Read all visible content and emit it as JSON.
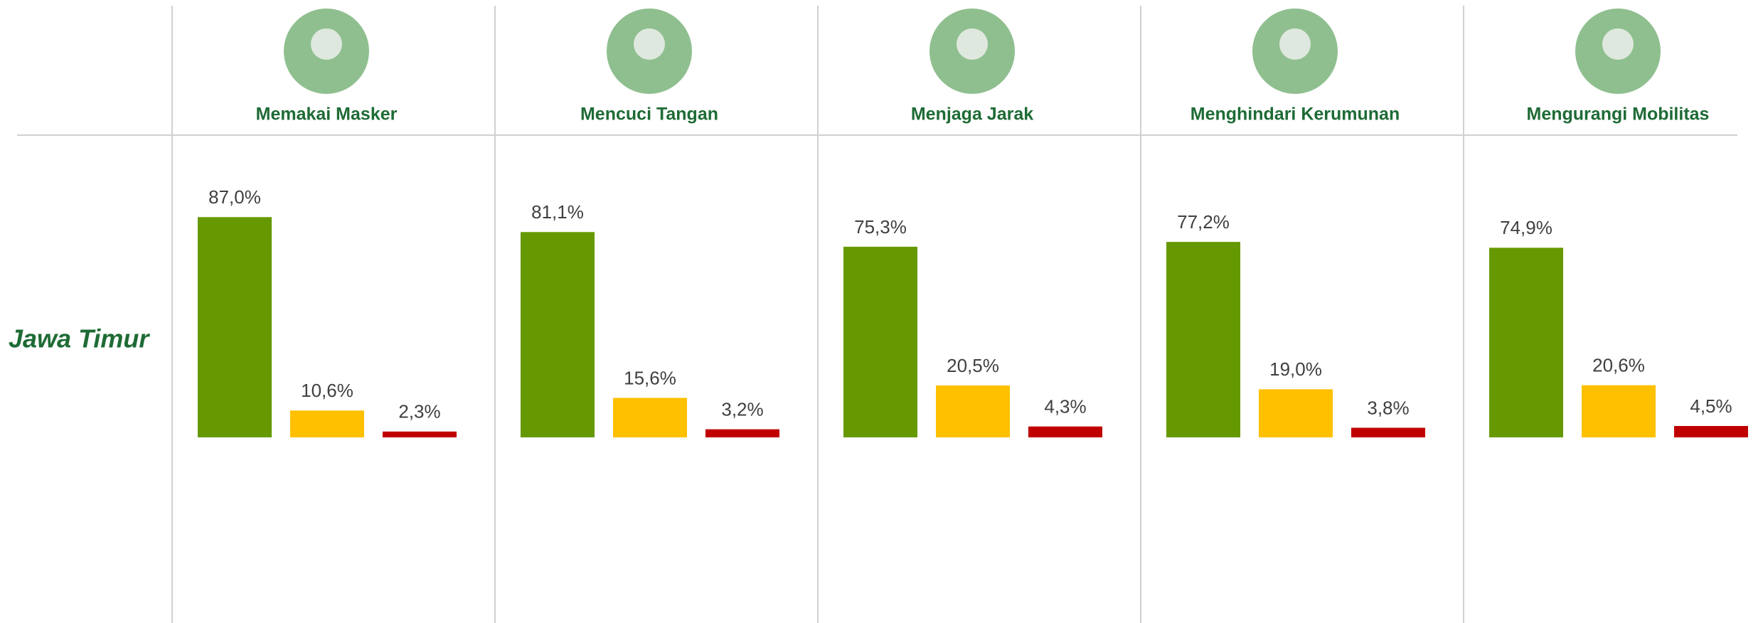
{
  "row_label": "Jawa Timur",
  "chart_data": [
    {
      "type": "bar",
      "title": "Memakai Masker",
      "values": [
        87.0,
        10.6,
        2.3
      ],
      "value_labels": [
        "87,0%",
        "10,6%",
        "2,3%"
      ],
      "colors": [
        "#669900",
        "#ffc000",
        "#c00000"
      ]
    },
    {
      "type": "bar",
      "title": "Mencuci Tangan",
      "values": [
        81.1,
        15.6,
        3.2
      ],
      "value_labels": [
        "81,1%",
        "15,6%",
        "3,2%"
      ],
      "colors": [
        "#669900",
        "#ffc000",
        "#c00000"
      ]
    },
    {
      "type": "bar",
      "title": "Menjaga Jarak",
      "values": [
        75.3,
        20.5,
        4.3
      ],
      "value_labels": [
        "75,3%",
        "20,5%",
        "4,3%"
      ],
      "colors": [
        "#669900",
        "#ffc000",
        "#c00000"
      ]
    },
    {
      "type": "bar",
      "title": "Menghindari Kerumunan",
      "values": [
        77.2,
        19.0,
        3.8
      ],
      "value_labels": [
        "77,2%",
        "19,0%",
        "3,8%"
      ],
      "colors": [
        "#669900",
        "#ffc000",
        "#c00000"
      ]
    },
    {
      "type": "bar",
      "title": "Mengurangi Mobilitas",
      "values": [
        74.9,
        20.6,
        4.5
      ],
      "value_labels": [
        "74,9%",
        "20,6%",
        "4,5%"
      ],
      "colors": [
        "#669900",
        "#ffc000",
        "#c00000"
      ]
    }
  ]
}
